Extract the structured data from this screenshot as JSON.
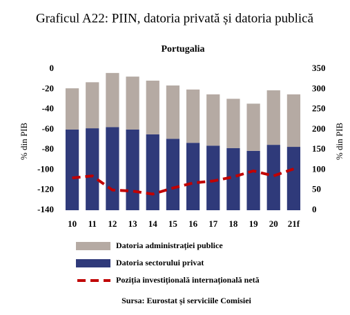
{
  "chart_data": {
    "type": "combo",
    "title": "Graficul A22: PIIN, datoria privată și datoria publică",
    "subtitle": "Portugalia",
    "ylabel": "% din PIB",
    "y2label": "% din PIB",
    "source": "Sursa: Eurostat și serviciile Comisiei",
    "categories": [
      "10",
      "11",
      "12",
      "13",
      "14",
      "15",
      "16",
      "17",
      "18",
      "19",
      "20",
      "21f"
    ],
    "ylim": [
      -140,
      0
    ],
    "yticks": [
      0,
      -20,
      -40,
      -60,
      -80,
      -100,
      -120,
      -140
    ],
    "y2lim": [
      0,
      350
    ],
    "y2ticks": [
      350,
      300,
      250,
      200,
      150,
      100,
      50,
      0
    ],
    "grid": false,
    "series": [
      {
        "name": "Datoria administrației publice",
        "type": "bar",
        "axis": "y2",
        "color": "#b5aaa3",
        "values": [
          102,
          114,
          134,
          131,
          133,
          132,
          132,
          127,
          122,
          117,
          135,
          130
        ]
      },
      {
        "name": "Datoria sectorului privat",
        "type": "bar",
        "axis": "y2",
        "color": "#2f3a7a",
        "values": [
          200,
          203,
          206,
          200,
          188,
          177,
          167,
          160,
          154,
          147,
          162,
          157
        ]
      },
      {
        "name": "Poziția investițională internațională netă",
        "type": "line",
        "axis": "y",
        "color": "#c00000",
        "values": [
          -108,
          -106,
          -120,
          -121,
          -124,
          -118,
          -113,
          -111,
          -107,
          -101,
          -106,
          -99
        ]
      }
    ]
  }
}
